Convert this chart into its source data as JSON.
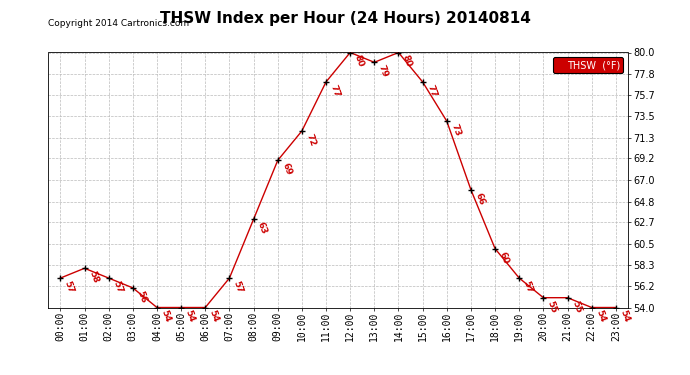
{
  "title": "THSW Index per Hour (24 Hours) 20140814",
  "copyright": "Copyright 2014 Cartronics.com",
  "hours": [
    "00:00",
    "01:00",
    "02:00",
    "03:00",
    "04:00",
    "05:00",
    "06:00",
    "07:00",
    "08:00",
    "09:00",
    "10:00",
    "11:00",
    "12:00",
    "13:00",
    "14:00",
    "15:00",
    "16:00",
    "17:00",
    "18:00",
    "19:00",
    "20:00",
    "21:00",
    "22:00",
    "23:00"
  ],
  "values": [
    57,
    58,
    57,
    56,
    54,
    54,
    54,
    57,
    63,
    69,
    72,
    77,
    80,
    79,
    80,
    77,
    73,
    66,
    60,
    57,
    55,
    55,
    54,
    54
  ],
  "line_color": "#cc0000",
  "marker_color": "#000000",
  "bg_color": "#ffffff",
  "grid_color": "#bbbbbb",
  "ylim_min": 54.0,
  "ylim_max": 80.0,
  "ytick_labels": [
    "54.0",
    "56.2",
    "58.3",
    "60.5",
    "62.7",
    "64.8",
    "67.0",
    "69.2",
    "71.3",
    "73.5",
    "75.7",
    "77.8",
    "80.0"
  ],
  "ytick_values": [
    54.0,
    56.2,
    58.3,
    60.5,
    62.7,
    64.8,
    67.0,
    69.2,
    71.3,
    73.5,
    75.7,
    77.8,
    80.0
  ],
  "legend_label": "THSW  (°F)",
  "legend_bg": "#cc0000",
  "legend_text_color": "#ffffff",
  "title_fontsize": 11,
  "label_fontsize": 6.5,
  "tick_fontsize": 7,
  "copyright_fontsize": 6.5
}
